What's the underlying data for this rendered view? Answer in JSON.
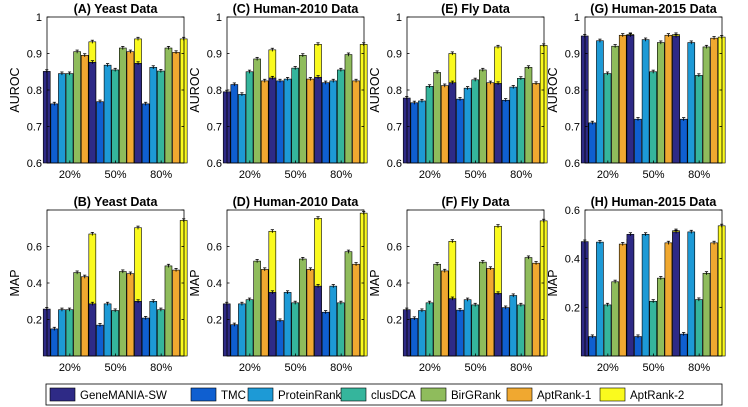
{
  "chart_data": {
    "type": "bar",
    "grouping": "grouped-with-error-bars",
    "legend": {
      "placement": "bottom",
      "entries": [
        "GeneMANIA-SW",
        "TMC",
        "ProteinRank",
        "clusDCA",
        "BirGRank",
        "AptRank-1",
        "AptRank-2"
      ]
    },
    "series_colors": [
      "#2e2a86",
      "#0f5fd0",
      "#1d9ad6",
      "#35b59c",
      "#8fbc5c",
      "#f0a830",
      "#fafa1e"
    ],
    "panels": [
      {
        "title": "(A) Yeast Data",
        "ylabel": "AUROC",
        "ylim": [
          0.6,
          1.0
        ],
        "yticks": [
          "0.6",
          "0.7",
          "0.8",
          "0.9",
          "1"
        ],
        "categories": [
          "20%",
          "50%",
          "80%"
        ],
        "values": [
          [
            0.851,
            0.762,
            0.845,
            0.845,
            0.905,
            0.895,
            0.932
          ],
          [
            0.876,
            0.768,
            0.868,
            0.855,
            0.915,
            0.905,
            0.94
          ],
          [
            0.873,
            0.762,
            0.862,
            0.852,
            0.915,
            0.903,
            0.94
          ]
        ]
      },
      {
        "title": "(C) Human-2010 Data",
        "ylabel": "AUROC",
        "ylim": [
          0.6,
          1.0
        ],
        "yticks": [
          "0.6",
          "0.7",
          "0.8",
          "0.9",
          "1"
        ],
        "categories": [
          "20%",
          "50%",
          "80%"
        ],
        "values": [
          [
            0.795,
            0.815,
            0.788,
            0.85,
            0.885,
            0.825,
            0.91
          ],
          [
            0.833,
            0.825,
            0.83,
            0.86,
            0.895,
            0.83,
            0.925
          ],
          [
            0.835,
            0.82,
            0.825,
            0.855,
            0.897,
            0.825,
            0.925
          ]
        ]
      },
      {
        "title": "(E) Fly Data",
        "ylabel": "AUROC",
        "ylim": [
          0.6,
          1.0
        ],
        "yticks": [
          "0.6",
          "0.7",
          "0.8",
          "0.9",
          "1"
        ],
        "categories": [
          "20%",
          "50%",
          "80%"
        ],
        "values": [
          [
            0.778,
            0.765,
            0.77,
            0.81,
            0.848,
            0.812,
            0.9
          ],
          [
            0.82,
            0.775,
            0.805,
            0.828,
            0.855,
            0.82,
            0.918
          ],
          [
            0.818,
            0.772,
            0.808,
            0.832,
            0.862,
            0.818,
            0.922
          ]
        ]
      },
      {
        "title": "(G) Human-2015 Data",
        "ylabel": "AUROC",
        "ylim": [
          0.6,
          1.0
        ],
        "yticks": [
          "0.6",
          "0.7",
          "0.8",
          "0.9",
          "1"
        ],
        "categories": [
          "20%",
          "50%",
          "80%"
        ],
        "values": [
          [
            0.948,
            0.71,
            0.935,
            0.845,
            0.92,
            0.95,
            0.952
          ],
          [
            0.95,
            0.72,
            0.938,
            0.85,
            0.93,
            0.95,
            0.952
          ],
          [
            0.948,
            0.72,
            0.93,
            0.84,
            0.918,
            0.942,
            0.945
          ]
        ]
      },
      {
        "title": "(B) Yeast Data",
        "ylabel": "MAP",
        "ylim": [
          0.0,
          0.7
        ],
        "yticks": [
          "",
          "0.2",
          "0.4",
          "0.6",
          ""
        ],
        "categories": [
          "20%",
          "50%",
          "80%"
        ],
        "values": [
          [
            0.225,
            0.13,
            0.222,
            0.222,
            0.4,
            0.38,
            0.585
          ],
          [
            0.25,
            0.148,
            0.25,
            0.218,
            0.405,
            0.395,
            0.615
          ],
          [
            0.262,
            0.182,
            0.262,
            0.222,
            0.432,
            0.412,
            0.65
          ]
        ]
      },
      {
        "title": "(D) Human-2010 Data",
        "ylabel": "MAP",
        "ylim": [
          0.0,
          0.7
        ],
        "yticks": [
          "",
          "0.2",
          "0.4",
          "0.6",
          ""
        ],
        "categories": [
          "20%",
          "50%",
          "80%"
        ],
        "values": [
          [
            0.25,
            0.15,
            0.25,
            0.27,
            0.455,
            0.415,
            0.598
          ],
          [
            0.305,
            0.17,
            0.305,
            0.255,
            0.465,
            0.415,
            0.66
          ],
          [
            0.335,
            0.21,
            0.335,
            0.255,
            0.5,
            0.44,
            0.685
          ]
        ]
      },
      {
        "title": "(F) Fly Data",
        "ylabel": "MAP",
        "ylim": [
          0.0,
          0.7
        ],
        "yticks": [
          "",
          "0.2",
          "0.4",
          "0.6",
          ""
        ],
        "categories": [
          "20%",
          "50%",
          "80%"
        ],
        "values": [
          [
            0.222,
            0.18,
            0.218,
            0.255,
            0.44,
            0.408,
            0.55
          ],
          [
            0.275,
            0.22,
            0.27,
            0.245,
            0.45,
            0.42,
            0.622
          ],
          [
            0.3,
            0.232,
            0.29,
            0.245,
            0.472,
            0.445,
            0.648
          ]
        ]
      },
      {
        "title": "(H) Human-2015 Data",
        "ylabel": "MAP",
        "ylim": [
          0.0,
          0.6
        ],
        "yticks": [
          "",
          "0.2",
          "0.4",
          "0.6"
        ],
        "categories": [
          "20%",
          "50%",
          "80%"
        ],
        "values": [
          [
            0.47,
            0.08,
            0.468,
            0.21,
            0.305,
            0.46,
            0.48
          ],
          [
            0.5,
            0.08,
            0.5,
            0.225,
            0.32,
            0.465,
            0.515
          ],
          [
            0.51,
            0.09,
            0.51,
            0.232,
            0.34,
            0.465,
            0.535
          ]
        ]
      }
    ]
  }
}
